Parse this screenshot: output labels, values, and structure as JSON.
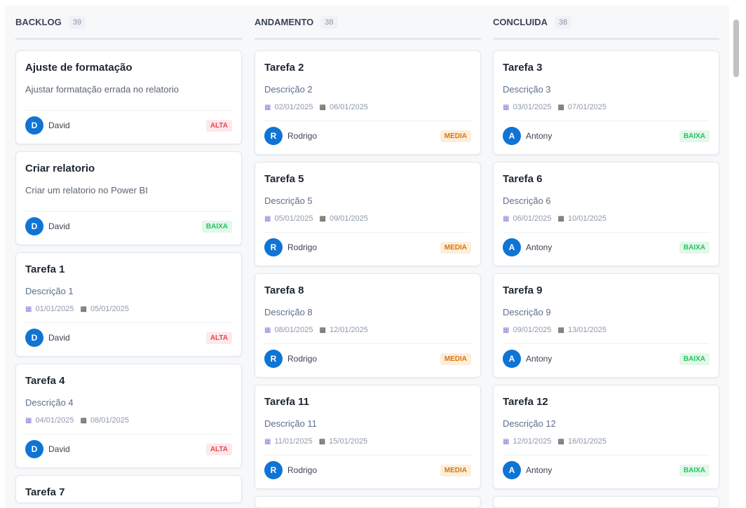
{
  "priorities": {
    "ALTA": {
      "fg": "#e5484d",
      "bg": "#fde8ea"
    },
    "MEDIA": {
      "fg": "#d97706",
      "bg": "#fdeedc"
    },
    "BAIXA": {
      "fg": "#22c55e",
      "bg": "#e3f7ea"
    }
  },
  "columns": [
    {
      "title": "BACKLOG",
      "count": "39",
      "cards": [
        {
          "title": "Ajuste de formatação",
          "desc": "Ajustar formatação errada no relatorio",
          "user": "David",
          "initial": "D",
          "priority": "ALTA"
        },
        {
          "title": "Criar relatorio",
          "desc": "Criar um relatorio no Power BI",
          "user": "David",
          "initial": "D",
          "priority": "BAIXA"
        },
        {
          "title": "Tarefa 1",
          "desc": "Descrição 1",
          "start": "01/01/2025",
          "end": "05/01/2025",
          "user": "David",
          "initial": "D",
          "priority": "ALTA"
        },
        {
          "title": "Tarefa 4",
          "desc": "Descrição 4",
          "start": "04/01/2025",
          "end": "08/01/2025",
          "user": "David",
          "initial": "D",
          "priority": "ALTA"
        },
        {
          "title": "Tarefa 7"
        }
      ]
    },
    {
      "title": "ANDAMENTO",
      "count": "38",
      "cards": [
        {
          "title": "Tarefa 2",
          "desc": "Descrição 2",
          "start": "02/01/2025",
          "end": "06/01/2025",
          "user": "Rodrigo",
          "initial": "R",
          "priority": "MEDIA"
        },
        {
          "title": "Tarefa 5",
          "desc": "Descrição 5",
          "start": "05/01/2025",
          "end": "09/01/2025",
          "user": "Rodrigo",
          "initial": "R",
          "priority": "MEDIA"
        },
        {
          "title": "Tarefa 8",
          "desc": "Descrição 8",
          "start": "08/01/2025",
          "end": "12/01/2025",
          "user": "Rodrigo",
          "initial": "R",
          "priority": "MEDIA"
        },
        {
          "title": "Tarefa 11",
          "desc": "Descrição 11",
          "start": "11/01/2025",
          "end": "15/01/2025",
          "user": "Rodrigo",
          "initial": "R",
          "priority": "MEDIA"
        },
        {}
      ]
    },
    {
      "title": "CONCLUIDA",
      "count": "38",
      "cards": [
        {
          "title": "Tarefa 3",
          "desc": "Descrição 3",
          "start": "03/01/2025",
          "end": "07/01/2025",
          "user": "Antony",
          "initial": "A",
          "priority": "BAIXA"
        },
        {
          "title": "Tarefa 6",
          "desc": "Descrição 6",
          "start": "06/01/2025",
          "end": "10/01/2025",
          "user": "Antony",
          "initial": "A",
          "priority": "BAIXA"
        },
        {
          "title": "Tarefa 9",
          "desc": "Descrição 9",
          "start": "09/01/2025",
          "end": "13/01/2025",
          "user": "Antony",
          "initial": "A",
          "priority": "BAIXA"
        },
        {
          "title": "Tarefa 12",
          "desc": "Descrição 12",
          "start": "12/01/2025",
          "end": "16/01/2025",
          "user": "Antony",
          "initial": "A",
          "priority": "BAIXA"
        },
        {}
      ]
    }
  ]
}
